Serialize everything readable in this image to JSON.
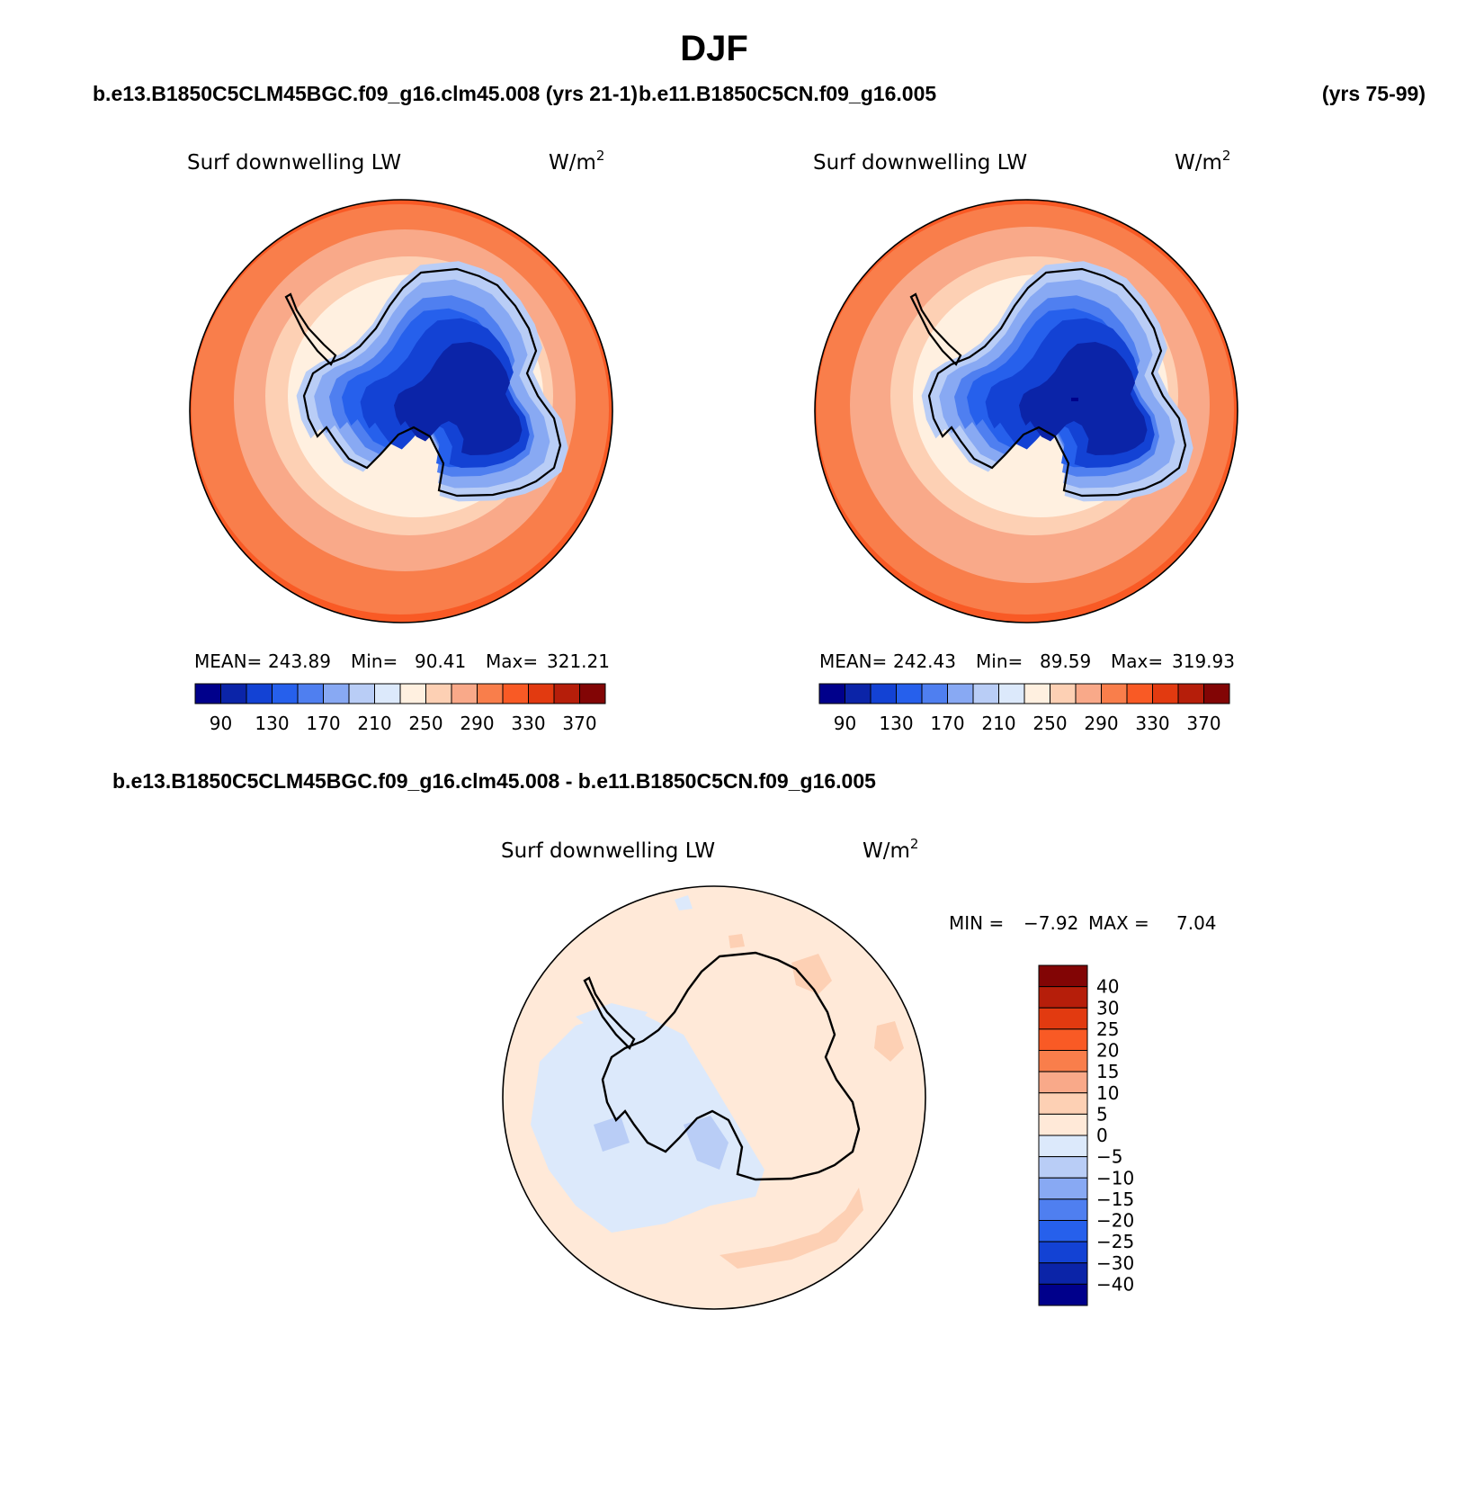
{
  "page": {
    "title": "DJF",
    "header_left_case": "b.e13.B1850C5CLM45BGC.f09_g16.clm45.008 (yrs 21-1)",
    "header_right_case": "b.e11.B1850C5CN.f09_g16.005",
    "header_right_years": "(yrs 75-99)",
    "diff_title": "b.e13.B1850C5CLM45BGC.f09_g16.clm45.008 - b.e11.B1850C5CN.f09_g16.005"
  },
  "colors": {
    "seq": [
      "#00008b",
      "#0b24a8",
      "#1342d4",
      "#2660ec",
      "#4f7ff0",
      "#88a9f3",
      "#b9cdf6",
      "#dce9fb",
      "#fff0e0",
      "#fdd0b4",
      "#f9a989",
      "#f97e4b",
      "#f95a25",
      "#e23a10",
      "#b61e0a",
      "#820505"
    ],
    "diff": [
      "#00008b",
      "#0b24a8",
      "#1342d4",
      "#2660ec",
      "#4f7ff0",
      "#88a9f3",
      "#b9cdf6",
      "#dce9fb",
      "#ffe9d8",
      "#fdd0b4",
      "#f9a989",
      "#f97e4b",
      "#f95a25",
      "#e23a10",
      "#b61e0a",
      "#820505"
    ]
  },
  "panels": [
    {
      "variable": "Surf downwelling LW",
      "units_base": "W/m",
      "units_exp": "2",
      "stats": {
        "mean_label": "MEAN=",
        "mean": "243.89",
        "min_label": "Min=",
        "min": "90.41",
        "max_label": "Max=",
        "max": "321.21"
      },
      "colorbar_ticks": [
        "90",
        "130",
        "170",
        "210",
        "250",
        "290",
        "330",
        "370"
      ]
    },
    {
      "variable": "Surf downwelling LW",
      "units_base": "W/m",
      "units_exp": "2",
      "stats": {
        "mean_label": "MEAN=",
        "mean": "242.43",
        "min_label": "Min=",
        "min": "89.59",
        "max_label": "Max=",
        "max": "319.93"
      },
      "colorbar_ticks": [
        "90",
        "130",
        "170",
        "210",
        "250",
        "290",
        "330",
        "370"
      ]
    }
  ],
  "diff_panel": {
    "variable": "Surf downwelling LW",
    "units_base": "W/m",
    "units_exp": "2",
    "min_label": "MIN =",
    "min": "−7.92",
    "max_label": "MAX =",
    "max": "7.04",
    "colorbar_ticks": [
      "40",
      "30",
      "25",
      "20",
      "15",
      "10",
      "5",
      "0",
      "−5",
      "−10",
      "−15",
      "−20",
      "−25",
      "−30",
      "−40"
    ]
  }
}
